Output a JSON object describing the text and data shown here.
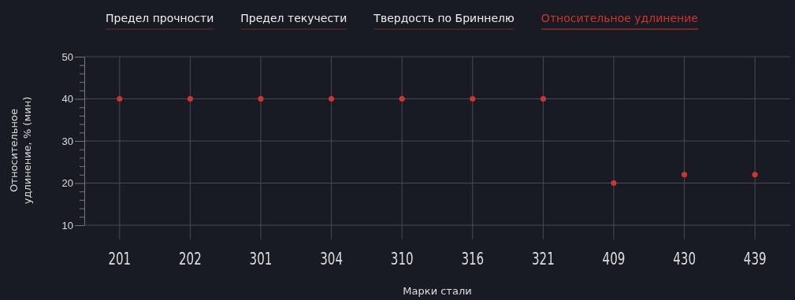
{
  "chart_data": {
    "type": "scatter",
    "xlabel": "Марки стали",
    "ylabel": "Относительное удлинение, % (мин)",
    "categories": [
      "201",
      "202",
      "301",
      "304",
      "310",
      "316",
      "321",
      "409",
      "430",
      "439"
    ],
    "series": [
      {
        "name": "Относительное удлинение",
        "color": "#d0342c",
        "values": [
          40,
          40,
          40,
          40,
          40,
          40,
          40,
          20,
          22,
          22
        ]
      }
    ],
    "annotations": [
      "Предел прочности",
      "Предел текучести",
      "Твердость по Бриннелю"
    ],
    "ylim": [
      10,
      50
    ],
    "yticks": [
      10,
      {
        "value": 12,
        "label": null
      },
      {
        "value": 14,
        "label": null
      },
      {
        "value": 16,
        "label": null
      },
      {
        "value": 18,
        "label": null
      },
      20,
      {
        "value": 22,
        "label": null
      },
      {
        "value": 24,
        "label": null
      },
      {
        "value": 26,
        "label": null
      },
      {
        "value": 28,
        "label": null
      },
      30,
      {
        "value": 32,
        "label": null
      },
      {
        "value": 34,
        "label": null
      },
      {
        "value": 36,
        "label": null
      },
      {
        "value": 38,
        "label": null
      },
      40,
      {
        "value": 42,
        "label": null
      },
      {
        "value": 44,
        "label": null
      },
      {
        "value": 46,
        "label": null
      },
      {
        "value": 48,
        "label": null
      },
      50
    ],
    "grid": true,
    "legend": "top",
    "marker": "circle"
  }
}
